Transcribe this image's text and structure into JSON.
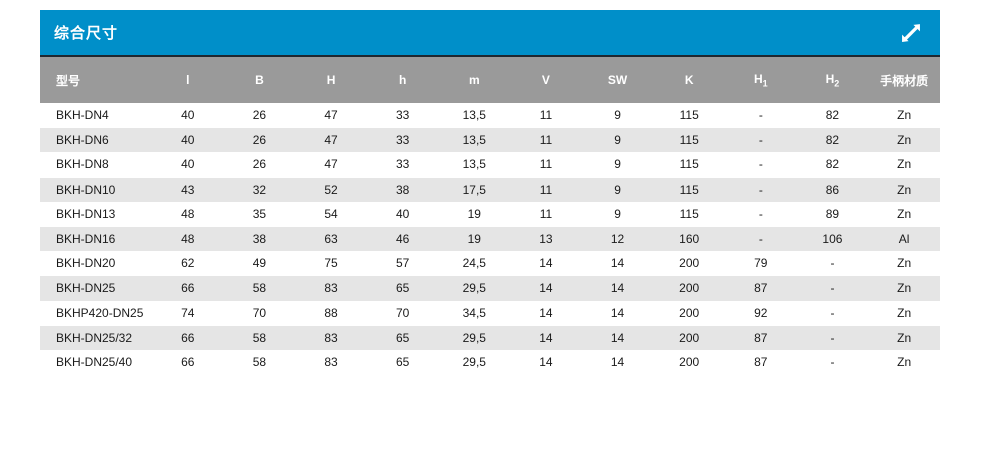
{
  "panel": {
    "title": "综合尺寸",
    "expand_icon": "diagonal-resize-arrow"
  },
  "colors": {
    "accent_blue": "#008fc9",
    "title_divider": "#1e2730",
    "header_gray": "#9a9a9a",
    "alt_row_gray": "#e5e5e5",
    "header_text": "#ffffff",
    "body_text": "#1a1a1a"
  },
  "table": {
    "columns": [
      {
        "key": "model",
        "label": "型号",
        "subscript": ""
      },
      {
        "key": "l",
        "label": "l",
        "subscript": ""
      },
      {
        "key": "B",
        "label": "B",
        "subscript": ""
      },
      {
        "key": "H",
        "label": "H",
        "subscript": ""
      },
      {
        "key": "h",
        "label": "h",
        "subscript": ""
      },
      {
        "key": "m",
        "label": "m",
        "subscript": ""
      },
      {
        "key": "V",
        "label": "V",
        "subscript": ""
      },
      {
        "key": "SW",
        "label": "SW",
        "subscript": ""
      },
      {
        "key": "K",
        "label": "K",
        "subscript": ""
      },
      {
        "key": "H1",
        "label": "H",
        "subscript": "1"
      },
      {
        "key": "H2",
        "label": "H",
        "subscript": "2"
      },
      {
        "key": "handle_material",
        "label": "手柄材质",
        "subscript": ""
      }
    ],
    "rows": [
      [
        "BKH-DN4",
        "40",
        "26",
        "47",
        "33",
        "13,5",
        "11",
        "9",
        "115",
        "-",
        "82",
        "Zn"
      ],
      [
        "BKH-DN6",
        "40",
        "26",
        "47",
        "33",
        "13,5",
        "11",
        "9",
        "115",
        "-",
        "82",
        "Zn"
      ],
      [
        "BKH-DN8",
        "40",
        "26",
        "47",
        "33",
        "13,5",
        "11",
        "9",
        "115",
        "-",
        "82",
        "Zn"
      ],
      [
        "BKH-DN10",
        "43",
        "32",
        "52",
        "38",
        "17,5",
        "11",
        "9",
        "115",
        "-",
        "86",
        "Zn"
      ],
      [
        "BKH-DN13",
        "48",
        "35",
        "54",
        "40",
        "19",
        "11",
        "9",
        "115",
        "-",
        "89",
        "Zn"
      ],
      [
        "BKH-DN16",
        "48",
        "38",
        "63",
        "46",
        "19",
        "13",
        "12",
        "160",
        "-",
        "106",
        "Al"
      ],
      [
        "BKH-DN20",
        "62",
        "49",
        "75",
        "57",
        "24,5",
        "14",
        "14",
        "200",
        "79",
        "-",
        "Zn"
      ],
      [
        "BKH-DN25",
        "66",
        "58",
        "83",
        "65",
        "29,5",
        "14",
        "14",
        "200",
        "87",
        "-",
        "Zn"
      ],
      [
        "BKHP420-DN25",
        "74",
        "70",
        "88",
        "70",
        "34,5",
        "14",
        "14",
        "200",
        "92",
        "-",
        "Zn"
      ],
      [
        "BKH-DN25/32",
        "66",
        "58",
        "83",
        "65",
        "29,5",
        "14",
        "14",
        "200",
        "87",
        "-",
        "Zn"
      ],
      [
        "BKH-DN25/40",
        "66",
        "58",
        "83",
        "65",
        "29,5",
        "14",
        "14",
        "200",
        "87",
        "-",
        "Zn"
      ]
    ]
  }
}
